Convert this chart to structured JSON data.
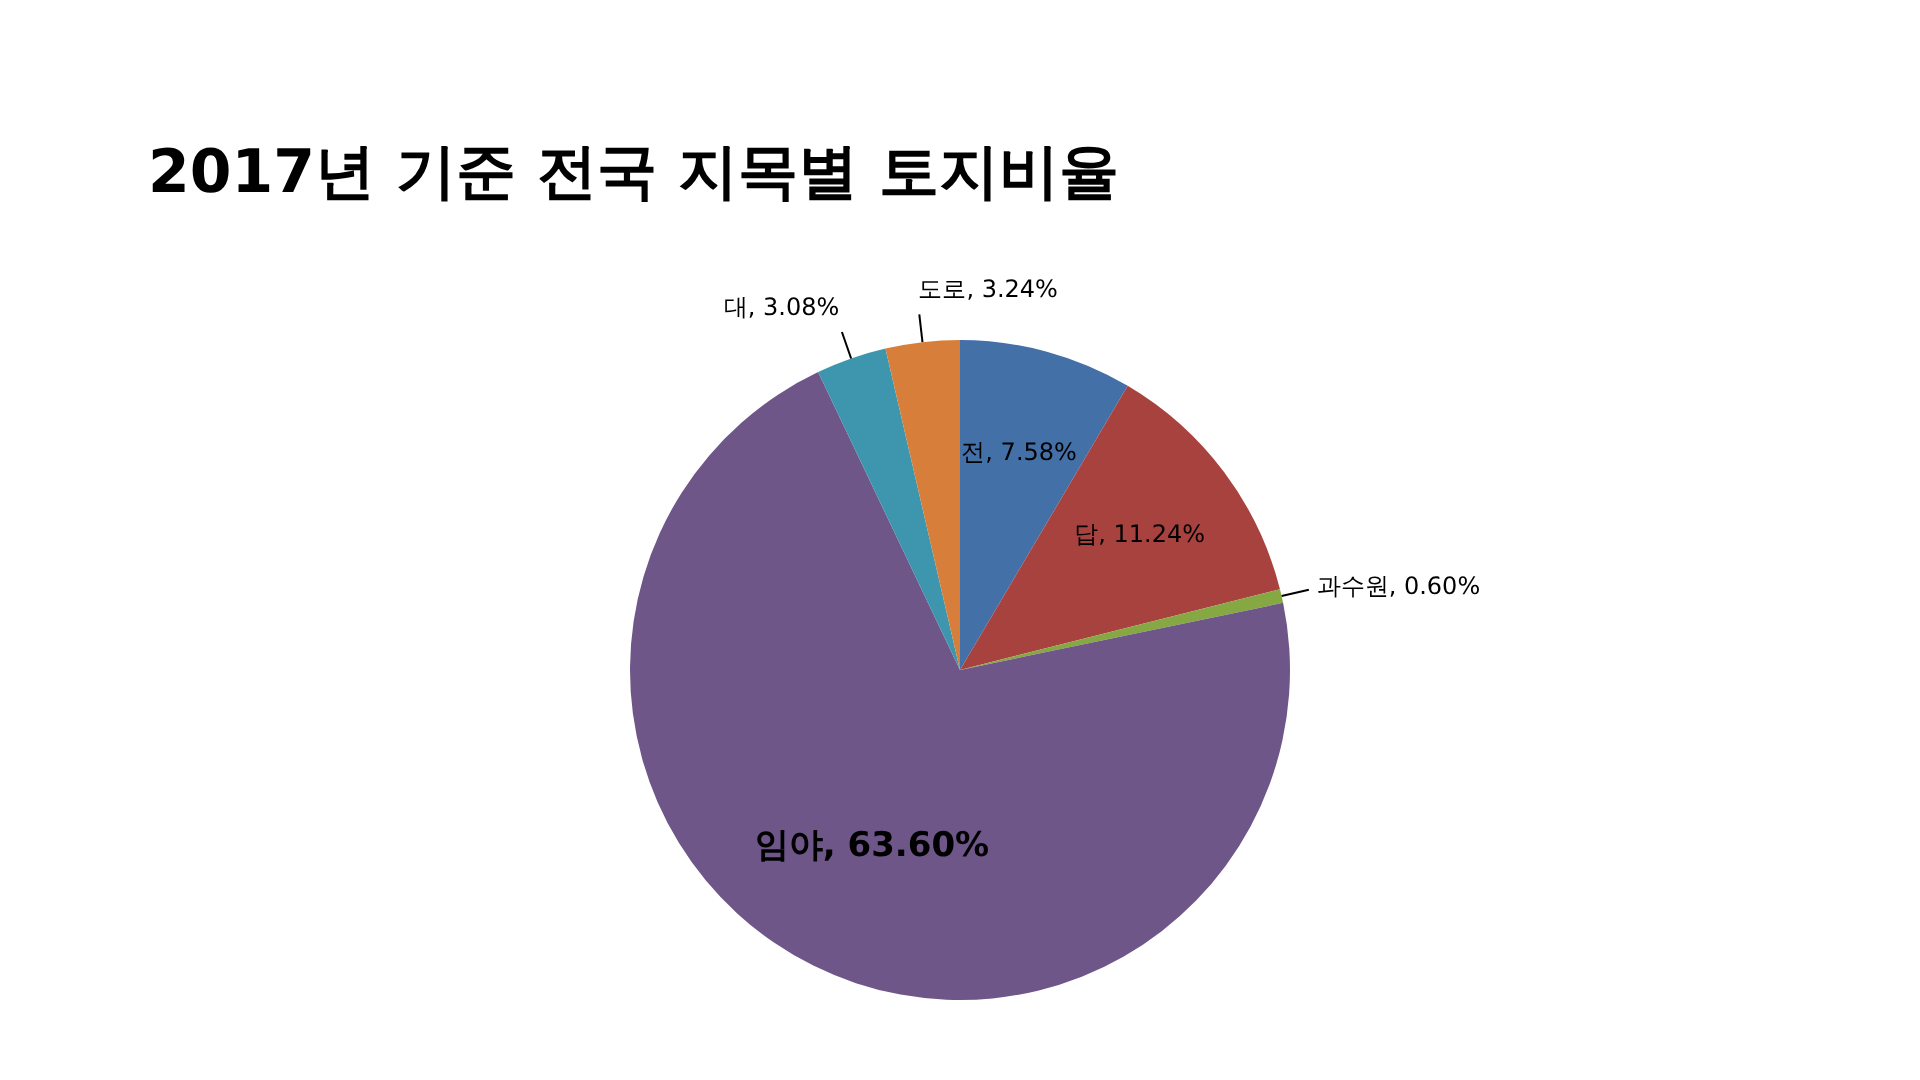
{
  "chart_data": {
    "type": "pie",
    "title": "2017년 기준 전국 지목별 토지비율",
    "categories": [
      "전",
      "답",
      "과수원",
      "임야",
      "대",
      "도로"
    ],
    "values": [
      7.58,
      11.24,
      0.6,
      63.6,
      3.08,
      3.24
    ],
    "colors": [
      "#4470a8",
      "#a8423f",
      "#86a843",
      "#6e5689",
      "#3d96ad",
      "#d77f3a"
    ],
    "value_labels": [
      "7.58%",
      "11.24%",
      "0.60%",
      "63.60%",
      "3.08%",
      "3.24%"
    ],
    "legend": false
  }
}
